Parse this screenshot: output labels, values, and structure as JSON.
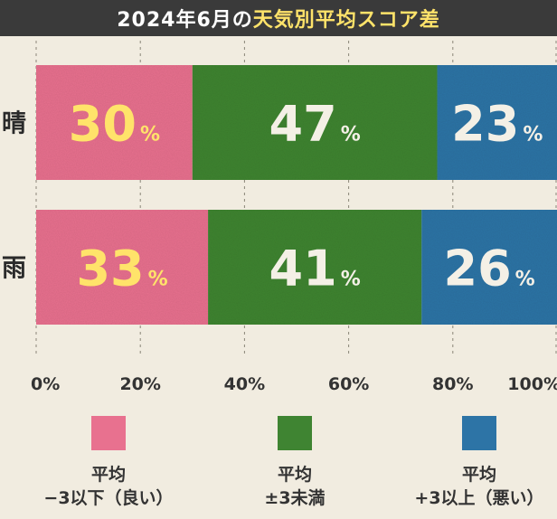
{
  "title_part1": "2024年6月の",
  "title_part2": "天気別平均スコア差",
  "chart_data": {
    "type": "bar",
    "stacked": true,
    "orientation": "horizontal",
    "categories": [
      "晴",
      "雨"
    ],
    "series": [
      {
        "name": "平均 −3以下（良い）",
        "values": [
          30,
          33
        ],
        "color": "#e8718f"
      },
      {
        "name": "平均 ±3未満",
        "values": [
          47,
          41
        ],
        "color": "#3f8432"
      },
      {
        "name": "平均 +3以上（悪い）",
        "values": [
          23,
          26
        ],
        "color": "#2d74a6"
      }
    ],
    "xlim": [
      0,
      100
    ],
    "xticks": [
      "0%",
      "20%",
      "40%",
      "60%",
      "80%",
      "100%"
    ],
    "value_suffix": "%",
    "label_colors": [
      "#ffe36a",
      "#f4f0e6",
      "#f4f0e6"
    ],
    "legend_position": "bottom"
  },
  "legend": [
    {
      "line1": "平均",
      "line2": "−3以下（良い）"
    },
    {
      "line1": "平均",
      "line2": "±3未満"
    },
    {
      "line1": "平均",
      "line2": "+3以上（悪い）"
    }
  ]
}
